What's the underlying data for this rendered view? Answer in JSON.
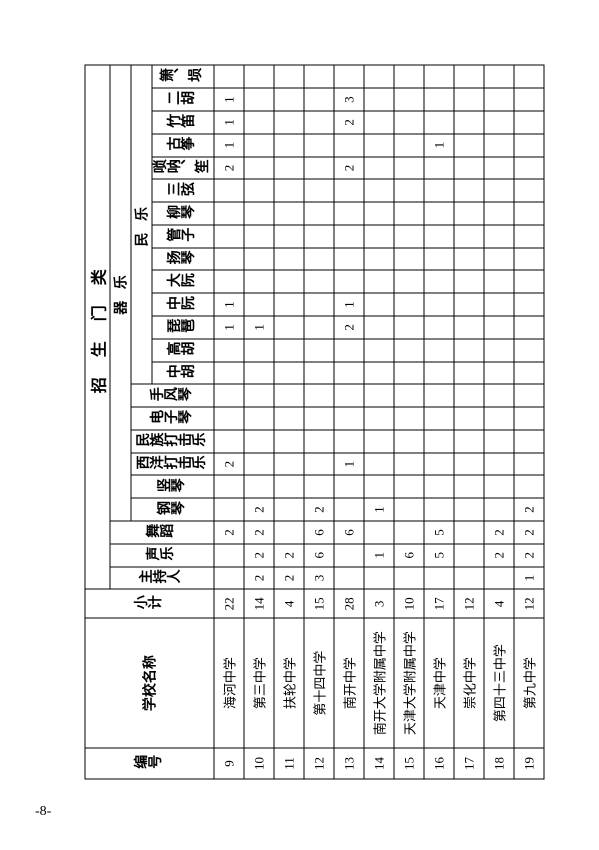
{
  "page_number": "-8-",
  "headers": {
    "main": "招 生 门 类",
    "qile": "器  乐",
    "minyue": "民  乐",
    "id": "编号",
    "school": "学校名称",
    "subtotal": "小计",
    "host": "主持人",
    "vocal": "声乐",
    "dance": "舞蹈",
    "cols": [
      "钢琴",
      "竖琴",
      "西洋打击乐",
      "民族打击乐",
      "电子琴",
      "手风琴",
      "中胡",
      "高胡",
      "琵琶",
      "中阮",
      "大阮",
      "扬琴",
      "管子",
      "柳琴",
      "三弦",
      "唢呐、笙",
      "古筝",
      "竹笛",
      "二胡",
      "箫、埙"
    ]
  },
  "rows": [
    {
      "id": "9",
      "school": "海河中学",
      "subtotal": "22",
      "host": "",
      "vocal": "",
      "dance": "2",
      "c": [
        "",
        "",
        "2",
        "",
        "",
        "",
        "",
        "",
        "1",
        "1",
        "",
        "",
        "",
        "",
        "",
        "2",
        "1",
        "1",
        "1",
        ""
      ]
    },
    {
      "id": "10",
      "school": "第三中学",
      "subtotal": "14",
      "host": "2",
      "vocal": "2",
      "dance": "2",
      "c": [
        "2",
        "",
        "",
        "",
        "",
        "",
        "",
        "",
        "1",
        "",
        "",
        "",
        "",
        "",
        "",
        "",
        "",
        "",
        "",
        ""
      ]
    },
    {
      "id": "11",
      "school": "扶轮中学",
      "subtotal": "4",
      "host": "2",
      "vocal": "2",
      "dance": "",
      "c": [
        "",
        "",
        "",
        "",
        "",
        "",
        "",
        "",
        "",
        "",
        "",
        "",
        "",
        "",
        "",
        "",
        "",
        "",
        "",
        ""
      ]
    },
    {
      "id": "12",
      "school": "第十四中学",
      "subtotal": "15",
      "host": "3",
      "vocal": "6",
      "dance": "6",
      "c": [
        "2",
        "",
        "",
        "",
        "",
        "",
        "",
        "",
        "",
        "",
        "",
        "",
        "",
        "",
        "",
        "",
        "",
        "",
        "",
        ""
      ]
    },
    {
      "id": "13",
      "school": "南开中学",
      "subtotal": "28",
      "host": "",
      "vocal": "",
      "dance": "6",
      "c": [
        "",
        "",
        "1",
        "",
        "",
        "",
        "",
        "",
        "2",
        "1",
        "",
        "",
        "",
        "",
        "",
        "2",
        "",
        "2",
        "3",
        ""
      ]
    },
    {
      "id": "14",
      "school": "南开大学附属中学",
      "subtotal": "3",
      "host": "",
      "vocal": "1",
      "dance": "",
      "c": [
        "1",
        "",
        "",
        "",
        "",
        "",
        "",
        "",
        "",
        "",
        "",
        "",
        "",
        "",
        "",
        "",
        "",
        "",
        "",
        ""
      ]
    },
    {
      "id": "15",
      "school": "天津大学附属中学",
      "subtotal": "10",
      "host": "",
      "vocal": "6",
      "dance": "",
      "c": [
        "",
        "",
        "",
        "",
        "",
        "",
        "",
        "",
        "",
        "",
        "",
        "",
        "",
        "",
        "",
        "",
        "",
        "",
        "",
        ""
      ]
    },
    {
      "id": "16",
      "school": "天津中学",
      "subtotal": "17",
      "host": "",
      "vocal": "5",
      "dance": "5",
      "c": [
        "",
        "",
        "",
        "",
        "",
        "",
        "",
        "",
        "",
        "",
        "",
        "",
        "",
        "",
        "",
        "",
        "1",
        "",
        "",
        ""
      ]
    },
    {
      "id": "17",
      "school": "崇化中学",
      "subtotal": "12",
      "host": "",
      "vocal": "",
      "dance": "",
      "c": [
        "",
        "",
        "",
        "",
        "",
        "",
        "",
        "",
        "",
        "",
        "",
        "",
        "",
        "",
        "",
        "",
        "",
        "",
        "",
        ""
      ]
    },
    {
      "id": "18",
      "school": "第四十三中学",
      "subtotal": "4",
      "host": "",
      "vocal": "2",
      "dance": "2",
      "c": [
        "",
        "",
        "",
        "",
        "",
        "",
        "",
        "",
        "",
        "",
        "",
        "",
        "",
        "",
        "",
        "",
        "",
        "",
        "",
        ""
      ]
    },
    {
      "id": "19",
      "school": "第九中学",
      "subtotal": "12",
      "host": "1",
      "vocal": "2",
      "dance": "2",
      "c": [
        "2",
        "",
        "",
        "",
        "",
        "",
        "",
        "",
        "",
        "",
        "",
        "",
        "",
        "",
        "",
        "",
        "",
        "",
        "",
        ""
      ]
    }
  ]
}
